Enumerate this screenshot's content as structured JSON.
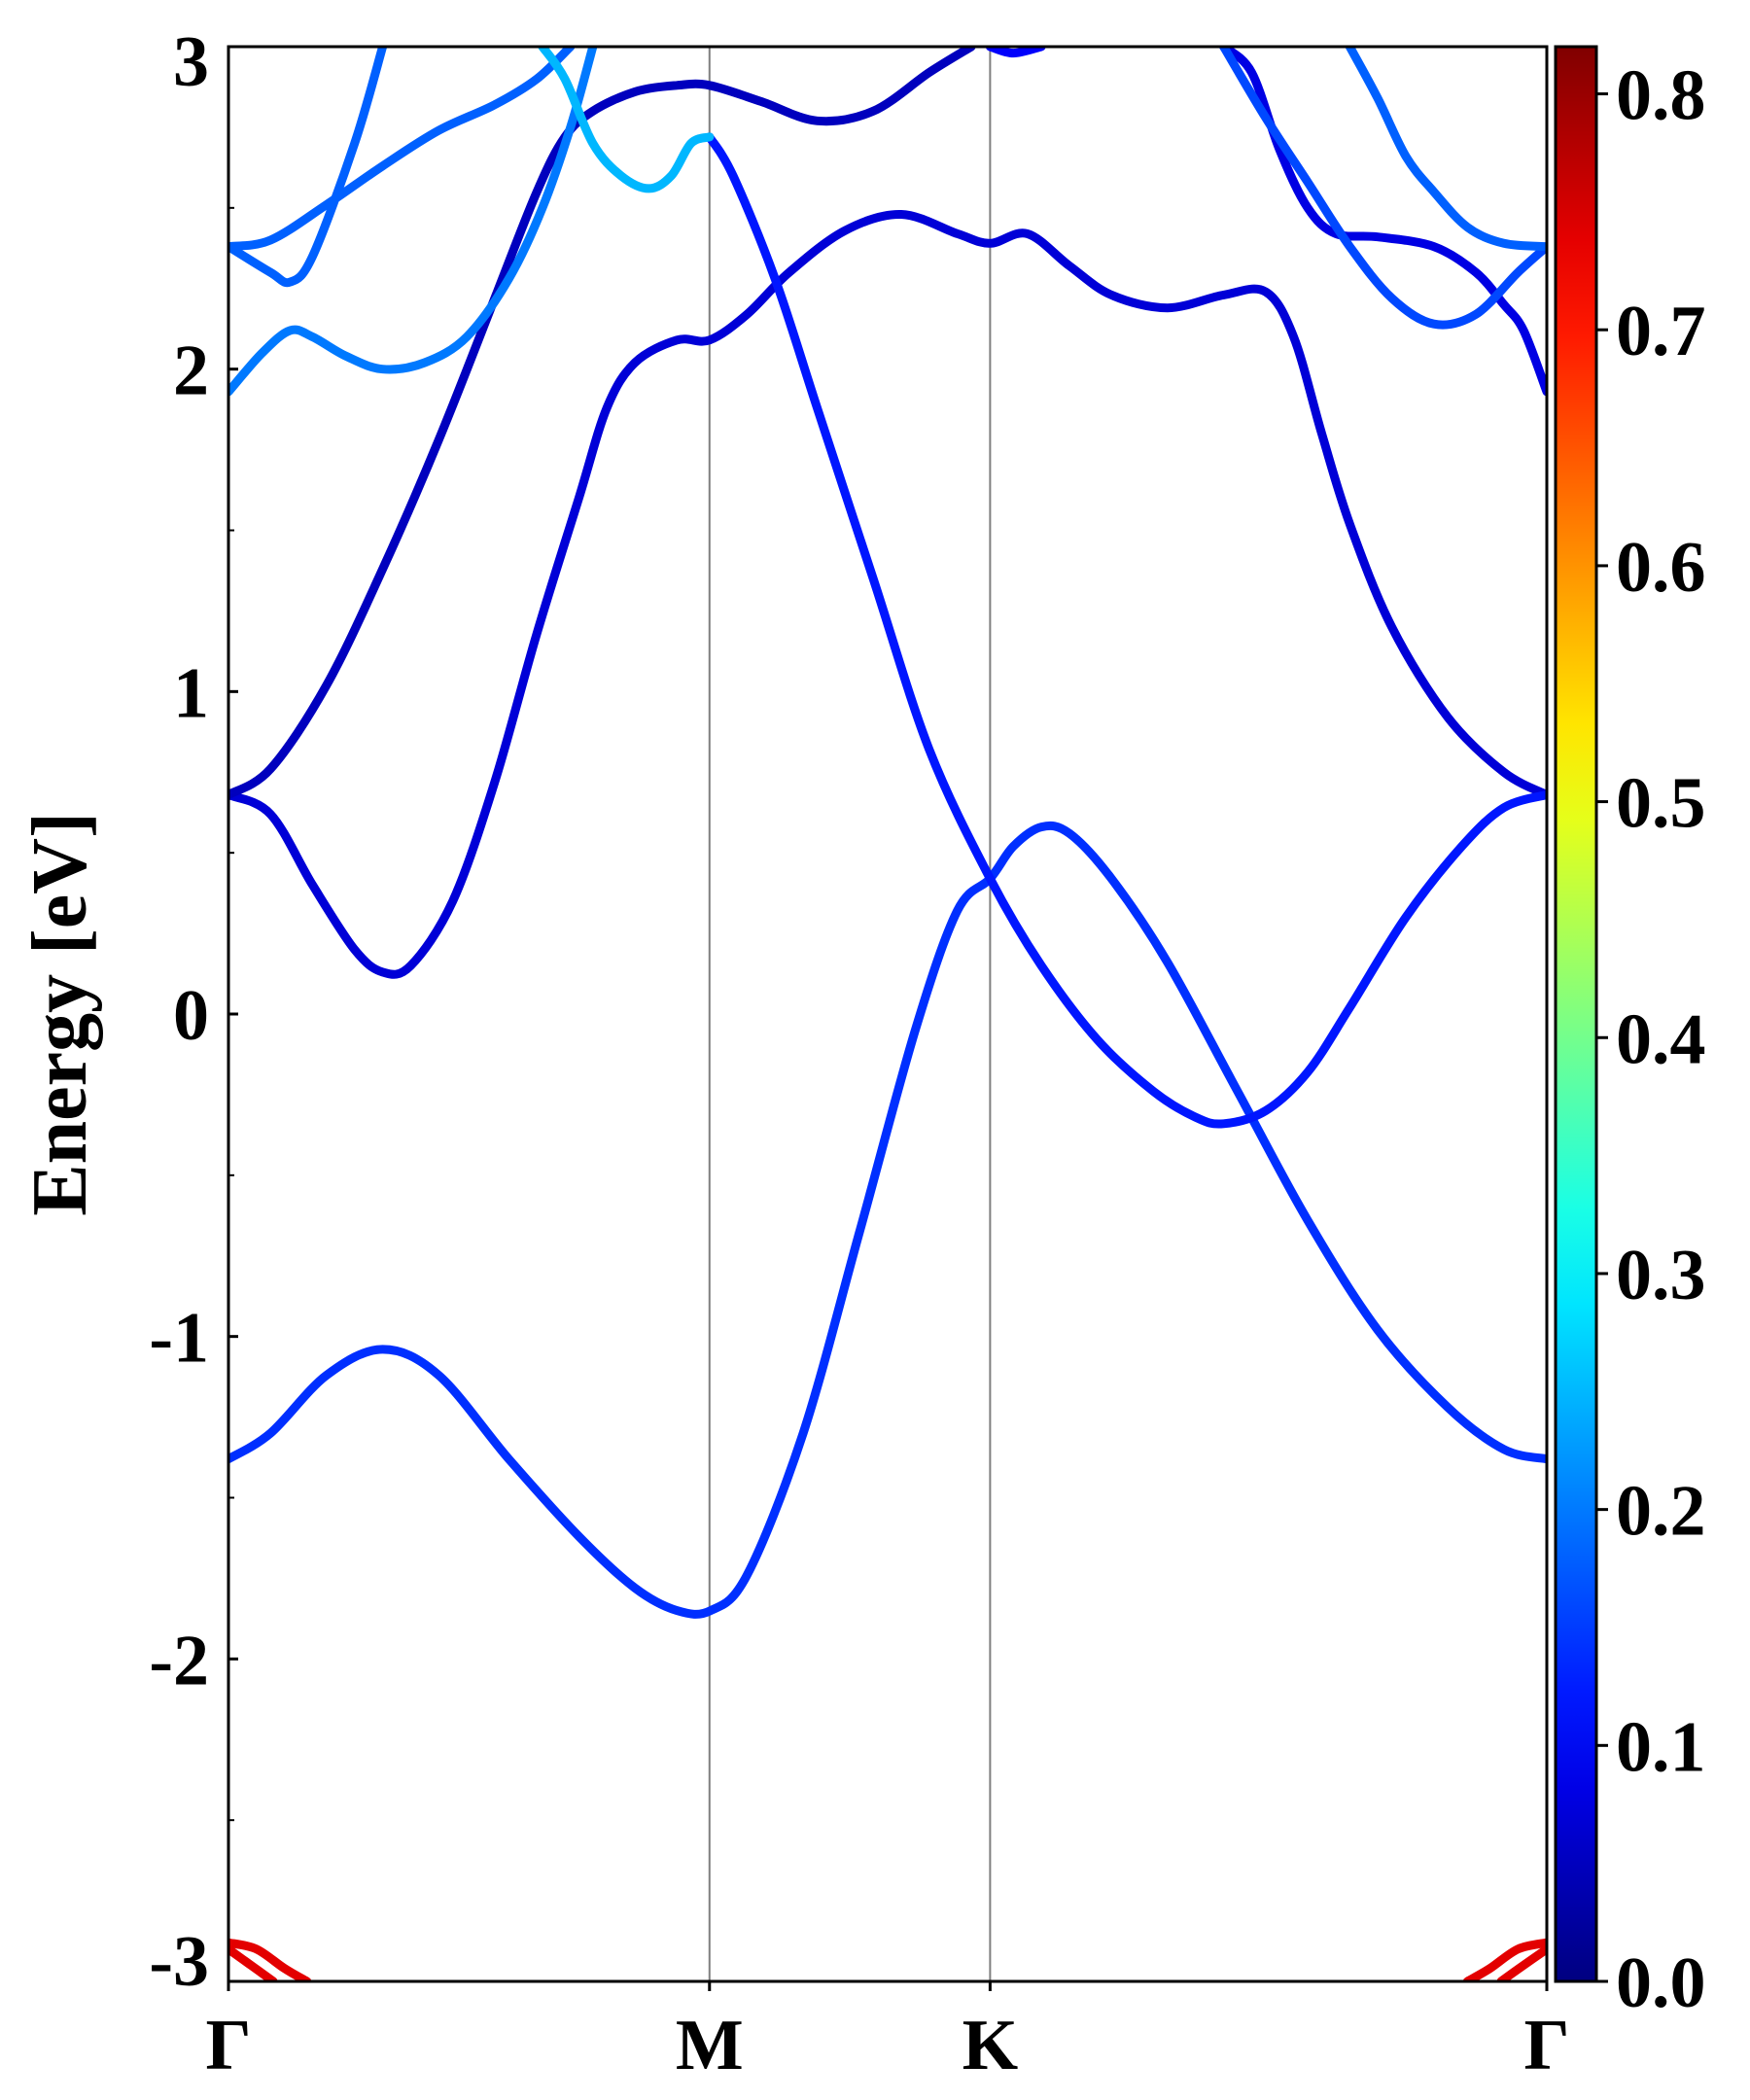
{
  "chart_data": {
    "type": "line",
    "title": "",
    "xlabel": "",
    "ylabel": "Energy [eV]",
    "ylim": [
      -3,
      3
    ],
    "xlim": [
      0,
      4.703
    ],
    "yticks": [
      -3,
      -2,
      -1,
      0,
      1,
      2,
      3
    ],
    "yticks_minor": [
      -2.5,
      -1.5,
      -0.5,
      0.5,
      1.5,
      2.5
    ],
    "ytick_labels": [
      "-3",
      "-2",
      "-1",
      "0",
      "1",
      "2",
      "3"
    ],
    "kpoints": [
      {
        "label": "Γ",
        "x": 0
      },
      {
        "label": "M",
        "x": 1.716
      },
      {
        "label": "K",
        "x": 2.717
      },
      {
        "label": "Γ",
        "x": 4.703
      }
    ],
    "grid": false,
    "colorbar": {
      "colormap": "jet",
      "min": 0.0,
      "max": 0.82,
      "ticks": [
        0.0,
        0.1,
        0.2,
        0.3,
        0.4,
        0.5,
        0.6,
        0.7,
        0.8
      ],
      "tick_labels": [
        "0.0",
        "0.1",
        "0.2",
        "0.3",
        "0.4",
        "0.5",
        "0.6",
        "0.7",
        "0.8"
      ]
    },
    "series": [
      {
        "weight": 0.14,
        "points": [
          [
            0,
            -1.38
          ],
          [
            0.15,
            -1.3
          ],
          [
            0.35,
            -1.12
          ],
          [
            0.55,
            -1.04
          ],
          [
            0.75,
            -1.12
          ],
          [
            1.0,
            -1.38
          ],
          [
            1.25,
            -1.62
          ],
          [
            1.45,
            -1.78
          ],
          [
            1.6,
            -1.85
          ],
          [
            1.72,
            -1.85
          ],
          [
            1.85,
            -1.74
          ],
          [
            2.05,
            -1.3
          ],
          [
            2.25,
            -0.68
          ],
          [
            2.45,
            -0.05
          ],
          [
            2.6,
            0.32
          ],
          [
            2.717,
            0.42
          ],
          [
            2.8,
            0.52
          ],
          [
            2.9,
            0.58
          ],
          [
            3.0,
            0.56
          ],
          [
            3.15,
            0.42
          ],
          [
            3.35,
            0.16
          ],
          [
            3.6,
            -0.24
          ],
          [
            3.85,
            -0.64
          ],
          [
            4.1,
            -0.98
          ],
          [
            4.35,
            -1.22
          ],
          [
            4.55,
            -1.35
          ],
          [
            4.703,
            -1.38
          ]
        ]
      },
      {
        "weight": 0.07,
        "points": [
          [
            0,
            0.68
          ],
          [
            0.15,
            0.62
          ],
          [
            0.3,
            0.4
          ],
          [
            0.45,
            0.2
          ],
          [
            0.55,
            0.13
          ],
          [
            0.65,
            0.15
          ],
          [
            0.8,
            0.35
          ],
          [
            0.95,
            0.72
          ],
          [
            1.1,
            1.18
          ],
          [
            1.25,
            1.6
          ],
          [
            1.35,
            1.88
          ],
          [
            1.45,
            2.02
          ],
          [
            1.6,
            2.09
          ],
          [
            1.716,
            2.09
          ],
          [
            1.85,
            2.17
          ],
          [
            2.0,
            2.3
          ],
          [
            2.2,
            2.43
          ],
          [
            2.4,
            2.48
          ],
          [
            2.6,
            2.42
          ],
          [
            2.717,
            2.39
          ],
          [
            2.85,
            2.42
          ],
          [
            3.0,
            2.32
          ],
          [
            3.15,
            2.23
          ],
          [
            3.35,
            2.19
          ],
          [
            3.55,
            2.23
          ],
          [
            3.7,
            2.24
          ],
          [
            3.8,
            2.1
          ],
          [
            3.9,
            1.8
          ],
          [
            4.0,
            1.52
          ],
          [
            4.15,
            1.2
          ],
          [
            4.35,
            0.92
          ],
          [
            4.55,
            0.75
          ],
          [
            4.703,
            0.68
          ]
        ]
      },
      {
        "weight": 0.05,
        "points": [
          [
            0,
            0.68
          ],
          [
            0.15,
            0.76
          ],
          [
            0.35,
            1.02
          ],
          [
            0.55,
            1.38
          ],
          [
            0.75,
            1.78
          ],
          [
            0.95,
            2.22
          ],
          [
            1.1,
            2.55
          ],
          [
            1.2,
            2.72
          ],
          [
            1.3,
            2.8
          ],
          [
            1.45,
            2.86
          ],
          [
            1.6,
            2.88
          ],
          [
            1.716,
            2.88
          ],
          [
            1.9,
            2.83
          ],
          [
            2.1,
            2.77
          ],
          [
            2.3,
            2.8
          ],
          [
            2.5,
            2.92
          ],
          [
            2.65,
            3.0
          ]
        ]
      },
      {
        "weight": 0.12,
        "points": [
          [
            1.716,
            2.72
          ],
          [
            1.8,
            2.6
          ],
          [
            1.95,
            2.28
          ],
          [
            2.1,
            1.88
          ],
          [
            2.3,
            1.35
          ],
          [
            2.5,
            0.82
          ],
          [
            2.717,
            0.42
          ],
          [
            2.9,
            0.15
          ],
          [
            3.1,
            -0.08
          ],
          [
            3.3,
            -0.24
          ],
          [
            3.45,
            -0.32
          ],
          [
            3.55,
            -0.34
          ],
          [
            3.7,
            -0.3
          ],
          [
            3.85,
            -0.18
          ],
          [
            4.0,
            0.02
          ],
          [
            4.2,
            0.3
          ],
          [
            4.4,
            0.52
          ],
          [
            4.55,
            0.64
          ],
          [
            4.703,
            0.68
          ]
        ]
      },
      {
        "weight": 0.18,
        "points": [
          [
            0,
            2.38
          ],
          [
            0.15,
            2.4
          ],
          [
            0.35,
            2.51
          ],
          [
            0.55,
            2.63
          ],
          [
            0.75,
            2.74
          ],
          [
            0.95,
            2.82
          ],
          [
            1.1,
            2.9
          ],
          [
            1.22,
            3.0
          ]
        ]
      },
      {
        "weight": 0.18,
        "points": [
          [
            0,
            2.38
          ],
          [
            0.15,
            2.3
          ],
          [
            0.22,
            2.27
          ],
          [
            0.3,
            2.35
          ],
          [
            0.45,
            2.7
          ],
          [
            0.55,
            3.0
          ]
        ]
      },
      {
        "weight": 0.2,
        "points": [
          [
            0,
            1.93
          ],
          [
            0.12,
            2.05
          ],
          [
            0.22,
            2.12
          ],
          [
            0.3,
            2.1
          ],
          [
            0.42,
            2.04
          ],
          [
            0.55,
            2.0
          ],
          [
            0.7,
            2.02
          ],
          [
            0.85,
            2.1
          ],
          [
            1.0,
            2.28
          ],
          [
            1.12,
            2.5
          ],
          [
            1.22,
            2.75
          ],
          [
            1.3,
            3.0
          ]
        ]
      },
      {
        "weight": 0.25,
        "points": [
          [
            1.12,
            3.0
          ],
          [
            1.2,
            2.9
          ],
          [
            1.3,
            2.7
          ],
          [
            1.4,
            2.6
          ],
          [
            1.5,
            2.56
          ],
          [
            1.58,
            2.6
          ],
          [
            1.65,
            2.7
          ],
          [
            1.716,
            2.72
          ]
        ]
      },
      {
        "weight": 0.08,
        "points": [
          [
            3.55,
            3.0
          ],
          [
            3.65,
            2.92
          ],
          [
            3.75,
            2.68
          ],
          [
            3.85,
            2.5
          ],
          [
            3.95,
            2.42
          ],
          [
            4.1,
            2.41
          ],
          [
            4.3,
            2.38
          ],
          [
            4.45,
            2.3
          ],
          [
            4.55,
            2.2
          ],
          [
            4.62,
            2.12
          ],
          [
            4.703,
            1.93
          ]
        ]
      },
      {
        "weight": 0.16,
        "points": [
          [
            3.55,
            3.0
          ],
          [
            3.7,
            2.78
          ],
          [
            3.85,
            2.58
          ],
          [
            4.0,
            2.38
          ],
          [
            4.15,
            2.22
          ],
          [
            4.3,
            2.14
          ],
          [
            4.45,
            2.17
          ],
          [
            4.6,
            2.3
          ],
          [
            4.703,
            2.38
          ]
        ]
      },
      {
        "weight": 0.18,
        "points": [
          [
            4.0,
            3.0
          ],
          [
            4.1,
            2.84
          ],
          [
            4.2,
            2.66
          ],
          [
            4.3,
            2.55
          ],
          [
            4.42,
            2.44
          ],
          [
            4.55,
            2.39
          ],
          [
            4.703,
            2.38
          ]
        ]
      },
      {
        "weight": 0.1,
        "points": [
          [
            2.717,
            3.0
          ],
          [
            2.8,
            2.98
          ],
          [
            2.9,
            3.0
          ]
        ]
      },
      {
        "weight": 0.74,
        "points": [
          [
            0,
            -2.88
          ],
          [
            0.1,
            -2.9
          ],
          [
            0.2,
            -2.96
          ],
          [
            0.28,
            -3.0
          ]
        ]
      },
      {
        "weight": 0.74,
        "points": [
          [
            0,
            -2.9
          ],
          [
            0.08,
            -2.95
          ],
          [
            0.16,
            -3.0
          ]
        ]
      },
      {
        "weight": 0.74,
        "points": [
          [
            4.703,
            -2.88
          ],
          [
            4.6,
            -2.9
          ],
          [
            4.5,
            -2.96
          ],
          [
            4.42,
            -3.0
          ]
        ]
      },
      {
        "weight": 0.74,
        "points": [
          [
            4.703,
            -2.9
          ],
          [
            4.62,
            -2.95
          ],
          [
            4.54,
            -3.0
          ]
        ]
      }
    ]
  }
}
